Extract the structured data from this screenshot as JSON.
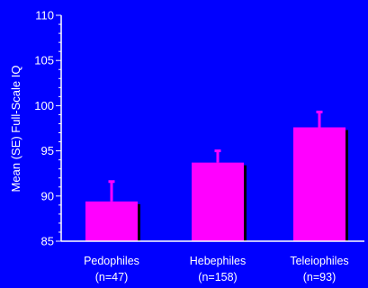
{
  "chart_data": {
    "type": "bar",
    "categories": [
      "Pedophiles",
      "Hebephiles",
      "Teleiophiles"
    ],
    "category_counts": [
      "(n=47)",
      "(n=158)",
      "(n=93)"
    ],
    "values": [
      89.4,
      93.7,
      97.6
    ],
    "errors": [
      2.2,
      1.3,
      1.7
    ],
    "ylabel": "Mean (SE) Full-Scale IQ",
    "xlabel": "",
    "ylim": [
      85,
      110
    ],
    "yticks": [
      85,
      90,
      95,
      100,
      105,
      110
    ],
    "grid": false,
    "legend": "none",
    "colors": {
      "background": "#0000ff",
      "bar": "#ff00ff",
      "bar_shadow": "#000000",
      "axis": "#ffffff",
      "text": "#ffffff"
    }
  }
}
